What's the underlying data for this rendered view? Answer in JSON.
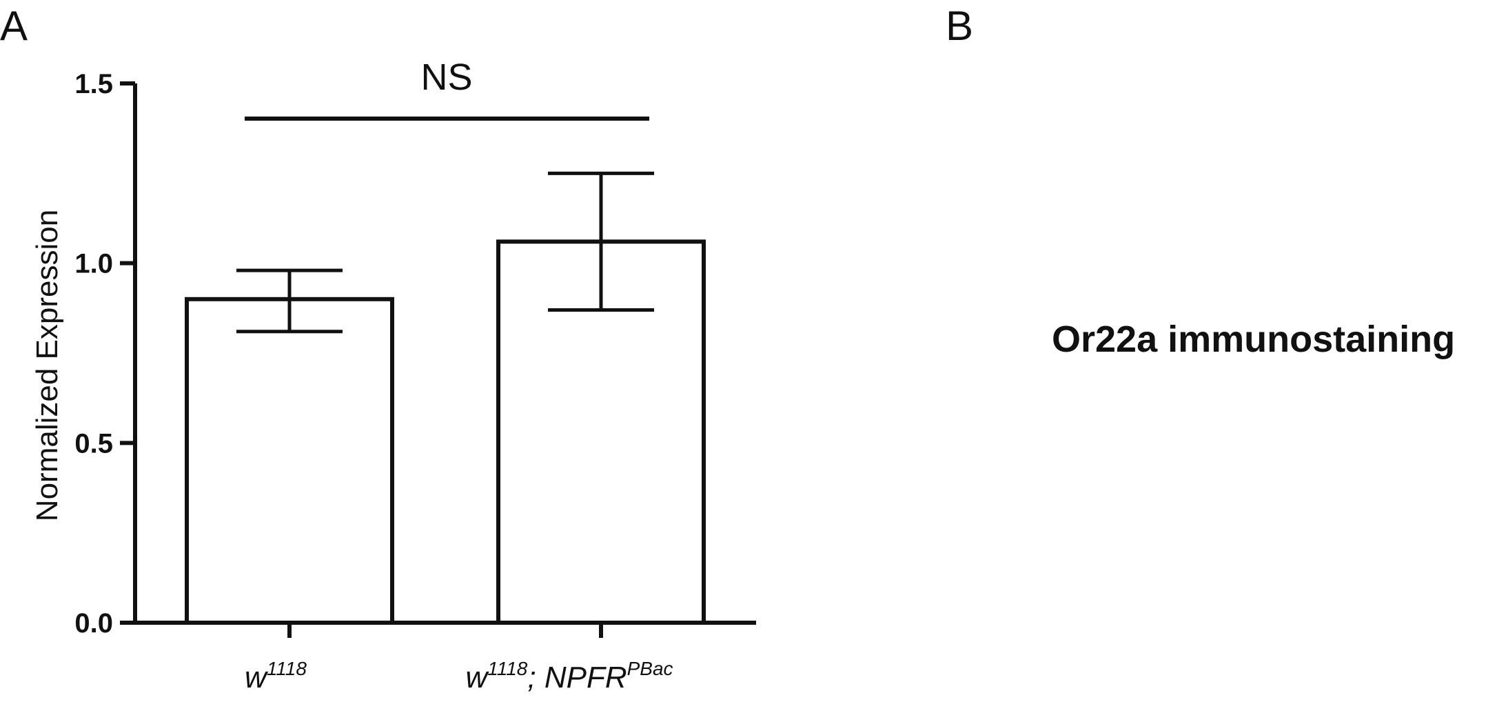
{
  "panels": {
    "a_label": "A",
    "b_label": "B",
    "b_caption": "Or22a immunostaining"
  },
  "chart_data": {
    "type": "bar",
    "title": "",
    "xlabel": "",
    "ylabel": "Normalized Expression",
    "ylim": [
      0,
      1.5
    ],
    "yticks": [
      {
        "value": 0.0,
        "label": "0.0"
      },
      {
        "value": 0.5,
        "label": "0.5"
      },
      {
        "value": 1.0,
        "label": "1.0"
      },
      {
        "value": 1.5,
        "label": "1.5"
      }
    ],
    "categories": [
      {
        "base": "w",
        "sup": "1118",
        "rest": "",
        "rest_sup": ""
      },
      {
        "base": "w",
        "sup": "1118",
        "rest": "; NPFR",
        "rest_sup": "PBac"
      }
    ],
    "values": [
      0.9,
      1.06
    ],
    "error_low": [
      0.81,
      0.87
    ],
    "error_high": [
      0.98,
      1.25
    ],
    "significance": {
      "label": "NS",
      "from": 0,
      "to": 1
    },
    "grid": false,
    "legend": "none",
    "colors": {
      "bar_fill": "#ffffff",
      "stroke": "#111111"
    }
  }
}
